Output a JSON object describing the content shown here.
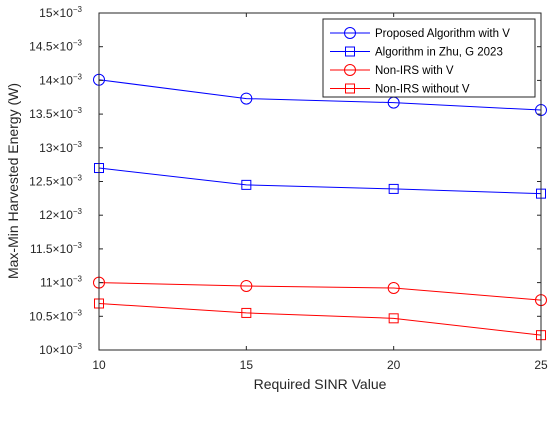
{
  "chart_data": {
    "type": "line",
    "xlabel": "Required SINR Value",
    "ylabel": "Max-Min Harvested Energy (W)",
    "x": [
      10,
      15,
      20,
      25
    ],
    "xlim": [
      10,
      25
    ],
    "ylim": [
      10.0,
      15.0
    ],
    "y_multiplier_label": "×10",
    "y_exponent_label": "−3",
    "x_ticks": [
      "10",
      "15",
      "20",
      "25"
    ],
    "y_ticks": [
      "10",
      "10.5",
      "11",
      "11.5",
      "12",
      "12.5",
      "13",
      "13.5",
      "14",
      "14.5",
      "15"
    ],
    "grid": false,
    "legend_position": "top-right",
    "series": [
      {
        "name": "Proposed Algorithm with V",
        "values": [
          14.01,
          13.73,
          13.67,
          13.56
        ],
        "color": "#0000ff",
        "marker": "circle"
      },
      {
        "name": "Algorithm in Zhu, G 2023",
        "values": [
          12.7,
          12.45,
          12.39,
          12.32
        ],
        "color": "#0000ff",
        "marker": "square"
      },
      {
        "name": "Non-IRS with V",
        "values": [
          11.0,
          10.95,
          10.92,
          10.74
        ],
        "color": "#ff0000",
        "marker": "circle"
      },
      {
        "name": "Non-IRS without V",
        "values": [
          10.69,
          10.55,
          10.47,
          10.22
        ],
        "color": "#ff0000",
        "marker": "square"
      }
    ]
  }
}
